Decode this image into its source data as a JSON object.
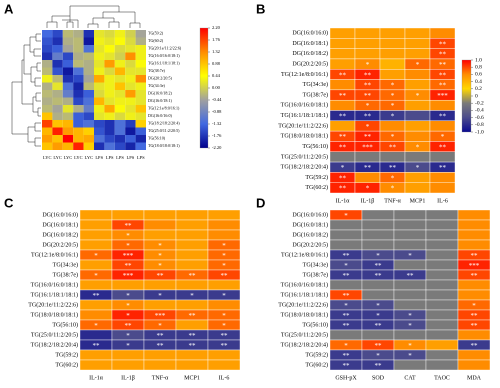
{
  "chart_data": [
    {
      "type": "heatmap",
      "label": "A",
      "rows": [
        "TG(59:2)",
        "TG(60:2)",
        "TG(20:1e/11:2/22:6)",
        "TG(16:0/16:0/18:1)",
        "TG(16:1/18:1/18:1)",
        "TG(38:7e)",
        "DG(20:2/20:5)",
        "TG(34:3e)",
        "DG(16:0/18:2)",
        "DG(16:0/18:1)",
        "TG(12:1e/8:0/16:1)",
        "DG(16:0/16:0)",
        "TG(18:2/18:2/20:4)",
        "TG(25:0/11:2/20:5)",
        "TG(56:10)",
        "TG(18:0/18:0/18:1)"
      ],
      "columns": [
        "LYC",
        "LYC",
        "LYC",
        "LYC",
        "LYC",
        "LPS",
        "LPS",
        "LPS",
        "LPS",
        "LPS"
      ],
      "values": [
        [
          -1.3,
          -1.6,
          -0.2,
          -0.3,
          -1.8,
          0.2,
          0.1,
          0.3,
          0.0,
          -0.4
        ],
        [
          -1.5,
          -1.8,
          -0.3,
          -0.2,
          -2.0,
          0.3,
          0.2,
          0.4,
          0.1,
          -0.3
        ],
        [
          -1.6,
          -1.4,
          -0.4,
          -0.2,
          -1.2,
          0.2,
          0.4,
          0.1,
          0.2,
          0.3
        ],
        [
          -1.8,
          -1.0,
          -1.6,
          -0.3,
          -0.2,
          0.3,
          0.2,
          0.0,
          1.3,
          0.3
        ],
        [
          -0.3,
          -1.8,
          -1.4,
          -0.2,
          -0.3,
          0.2,
          1.2,
          0.3,
          0.1,
          0.4
        ],
        [
          -0.2,
          -1.5,
          -2.0,
          -1.2,
          -0.3,
          0.3,
          0.1,
          1.0,
          0.2,
          0.2
        ],
        [
          0.3,
          -0.2,
          -1.8,
          -1.6,
          -0.4,
          1.1,
          0.3,
          0.2,
          0.3,
          1.3
        ],
        [
          -0.3,
          0.2,
          -1.2,
          -1.9,
          -0.2,
          0.2,
          0.3,
          0.9,
          0.2,
          0.3
        ],
        [
          -0.2,
          -0.3,
          -1.0,
          -1.8,
          -1.4,
          0.1,
          0.3,
          0.2,
          1.2,
          0.2
        ],
        [
          -0.3,
          -0.2,
          -0.3,
          -1.6,
          -1.2,
          1.0,
          0.2,
          0.3,
          0.3,
          0.2
        ],
        [
          -0.2,
          -0.4,
          0.2,
          -0.3,
          -1.0,
          0.3,
          1.1,
          0.4,
          0.2,
          0.9
        ],
        [
          0.9,
          -0.3,
          -0.2,
          -1.4,
          -1.6,
          0.2,
          0.3,
          0.1,
          0.3,
          0.2
        ],
        [
          1.8,
          0.9,
          1.0,
          -1.4,
          -1.2,
          -1.6,
          -1.8,
          -1.2,
          -1.7,
          0.8
        ],
        [
          1.0,
          2.0,
          1.2,
          1.0,
          0.8,
          -1.5,
          -1.8,
          -1.2,
          -2.0,
          -1.4
        ],
        [
          1.2,
          0.9,
          2.2,
          1.0,
          1.1,
          -1.2,
          -1.6,
          -1.8,
          -1.4,
          -1.9
        ],
        [
          0.9,
          1.2,
          1.0,
          2.0,
          0.8,
          -1.8,
          -1.2,
          -1.6,
          -1.9,
          -1.3
        ]
      ],
      "zlim": [
        -2.2,
        2.2
      ],
      "colors": [
        "#00008b",
        "#4169e1",
        "#a0a0a0",
        "#ffff00",
        "#ff8c00",
        "#ff0000"
      ],
      "colorbar": true,
      "zticks": [
        {
          "value": 2.2,
          "label": "2.20"
        },
        1.76,
        1.32,
        0.88,
        0.44,
        {
          "value": 0,
          "label": "0.00"
        },
        -0.44,
        -0.88,
        -1.32,
        -1.76,
        {
          "value": -2.2,
          "label": "-2.20"
        }
      ]
    },
    {
      "type": "heatmap",
      "label": "B",
      "rows": [
        "DG(16:0/16:0)",
        "DG(16:0/18:1)",
        "DG(16:0/18:2)",
        "DG(20:2/20:5)",
        "TG(12:1e/8:0/16:1)",
        "TG(34:3e)",
        "TG(38:7e)",
        "TG(16:0/16:0/18:1)",
        "TG(16:1/18:1/18:1)",
        "TG(20:1e/11:2/22:6)",
        "TG(18:0/18:0/18:1)",
        "TG(56:10)",
        "TG(25:0/11:2/20:5)",
        "TG(18:2/18:2/20:4)",
        "TG(59:2)",
        "TG(60:2)"
      ],
      "columns": [
        "IL-1α",
        "IL-1β",
        "TNF-α",
        "MCP1",
        "IL-6"
      ],
      "values": [
        [
          0.5,
          0.5,
          0.5,
          0.5,
          0.6
        ],
        [
          0.5,
          0.5,
          0.5,
          0.5,
          0.8
        ],
        [
          0.5,
          0.5,
          0.5,
          0.5,
          0.8
        ],
        [
          0.5,
          0.6,
          0.4,
          0.7,
          0.7
        ],
        [
          0.8,
          0.9,
          0.5,
          0.6,
          0.8
        ],
        [
          0.6,
          0.8,
          0.7,
          0.5,
          0.7
        ],
        [
          0.8,
          0.8,
          0.7,
          0.6,
          0.9
        ],
        [
          0.6,
          0.7,
          0.7,
          0.5,
          0.6
        ],
        [
          -0.8,
          -0.8,
          -0.7,
          -0.6,
          -0.8
        ],
        [
          0.5,
          0.8,
          0.6,
          0.5,
          0.6
        ],
        [
          0.8,
          0.9,
          0.7,
          0.6,
          0.7
        ],
        [
          0.9,
          0.9,
          0.8,
          0.6,
          0.9
        ],
        [
          -0.2,
          -0.2,
          -0.2,
          -0.2,
          -0.2
        ],
        [
          -0.7,
          -0.8,
          -0.8,
          -0.6,
          -0.8
        ],
        [
          0.9,
          0.6,
          0.7,
          0.5,
          0.6
        ],
        [
          0.9,
          0.9,
          0.6,
          0.5,
          0.6
        ]
      ],
      "stars": [
        [
          null,
          null,
          null,
          null,
          null
        ],
        [
          null,
          null,
          null,
          null,
          "**"
        ],
        [
          null,
          null,
          null,
          null,
          "**"
        ],
        [
          null,
          "*",
          null,
          "*",
          "**"
        ],
        [
          "**",
          "**",
          null,
          null,
          "**"
        ],
        [
          null,
          "**",
          "*",
          null,
          "**"
        ],
        [
          "**",
          "**",
          "*",
          "*",
          "***"
        ],
        [
          null,
          "*",
          "*",
          null,
          null
        ],
        [
          "**",
          "**",
          "*",
          null,
          "**"
        ],
        [
          null,
          "*",
          null,
          null,
          null
        ],
        [
          "**",
          "**",
          "*",
          null,
          "*"
        ],
        [
          "**",
          "***",
          "**",
          "*",
          "**"
        ],
        [
          null,
          null,
          null,
          null,
          null
        ],
        [
          "*",
          "**",
          "**",
          "*",
          "**"
        ],
        [
          "**",
          null,
          "*",
          null,
          null
        ],
        [
          "**",
          "*",
          "*",
          null,
          null
        ]
      ],
      "zlim": [
        -1,
        1
      ],
      "colors": [
        "#0a0a90",
        "#4b4b8c",
        "#7a7a7a",
        "#ffd700",
        "#ff8c00",
        "#ff0000"
      ],
      "colorbar": true,
      "zticks": [
        {
          "value": 1,
          "label": "1.0"
        },
        0.8,
        0.6,
        0.4,
        0.2,
        0,
        -0.2,
        -0.4,
        -0.6,
        -0.8,
        {
          "value": -1,
          "label": "-1.0"
        }
      ]
    },
    {
      "type": "heatmap",
      "label": "C",
      "rows": [
        "DG(16:0/16:0)",
        "DG(16:0/18:1)",
        "DG(16:0/18:2)",
        "DG(20:2/20:5)",
        "TG(12:1e/8:0/16:1)",
        "TG(34:3e)",
        "TG(38:7e)",
        "TG(16:0/16:0/18:1)",
        "TG(16:1/18:1/18:1)",
        "TG(20:1e/11:2/22:6)",
        "TG(18:0/18:0/18:1)",
        "TG(56:10)",
        "TG(25:0/11:2/20:5)",
        "TG(18:2/18:2/20:4)",
        "TG(59:2)",
        "TG(60:2)"
      ],
      "columns": [
        "IL-1α",
        "IL-1β",
        "TNF-α",
        "MCP1",
        "IL-6"
      ],
      "values": [
        [
          0.5,
          0.5,
          0.5,
          0.5,
          0.5
        ],
        [
          0.5,
          0.8,
          0.6,
          0.5,
          0.6
        ],
        [
          0.5,
          0.6,
          0.5,
          0.5,
          0.6
        ],
        [
          0.5,
          0.7,
          0.6,
          0.5,
          0.7
        ],
        [
          0.7,
          0.9,
          0.6,
          0.5,
          0.7
        ],
        [
          0.5,
          0.8,
          0.6,
          0.5,
          0.7
        ],
        [
          0.7,
          0.9,
          0.8,
          0.7,
          0.8
        ],
        [
          0.5,
          0.5,
          0.5,
          0.5,
          0.5
        ],
        [
          -0.8,
          -0.6,
          -0.7,
          -0.7,
          -0.7
        ],
        [
          0.5,
          0.6,
          0.5,
          0.5,
          0.6
        ],
        [
          0.6,
          0.9,
          0.8,
          0.7,
          0.7
        ],
        [
          0.7,
          0.8,
          0.7,
          0.5,
          0.7
        ],
        [
          -0.8,
          -0.6,
          -0.7,
          -0.7,
          -0.7
        ],
        [
          -0.8,
          -0.7,
          -0.7,
          -0.7,
          -0.7
        ],
        [
          0.5,
          0.5,
          0.5,
          0.5,
          0.5
        ],
        [
          0.5,
          0.5,
          0.5,
          0.5,
          0.5
        ]
      ],
      "stars": [
        [
          null,
          null,
          null,
          null,
          null
        ],
        [
          null,
          "**",
          null,
          null,
          null
        ],
        [
          null,
          "*",
          null,
          null,
          null
        ],
        [
          null,
          "*",
          "*",
          null,
          "*"
        ],
        [
          "*",
          "***",
          "*",
          null,
          "*"
        ],
        [
          null,
          "**",
          "*",
          null,
          "*"
        ],
        [
          "*",
          "***",
          "**",
          "**",
          "**"
        ],
        [
          null,
          null,
          null,
          null,
          null
        ],
        [
          "**",
          "*",
          "*",
          "*",
          "*"
        ],
        [
          null,
          "*",
          null,
          null,
          null
        ],
        [
          null,
          "*",
          "***",
          "**",
          "*"
        ],
        [
          "*",
          "**",
          "*",
          null,
          "*"
        ],
        [
          null,
          "*",
          "**",
          "**",
          "**"
        ],
        [
          "**",
          "*",
          "**",
          "**",
          "**"
        ],
        [
          null,
          null,
          null,
          null,
          null
        ],
        [
          null,
          null,
          null,
          null,
          null
        ]
      ],
      "zlim": [
        -1,
        1
      ],
      "colors": [
        "#0a0a90",
        "#4b4b8c",
        "#7a7a7a",
        "#ffd700",
        "#ff8c00",
        "#ff0000"
      ],
      "colorbar": false
    },
    {
      "type": "heatmap",
      "label": "D",
      "rows": [
        "DG(16:0/16:0)",
        "DG(16:0/18:1)",
        "DG(16:0/18:2)",
        "DG(20:2/20:5)",
        "TG(12:1e/8:0/16:1)",
        "TG(34:3e)",
        "TG(38:7e)",
        "TG(16:0/16:0/18:1)",
        "TG(16:1/18:1/18:1)",
        "TG(20:1e/11:2/22:6)",
        "TG(18:0/18:0/18:1)",
        "TG(56:10)",
        "TG(25:0/11:2/20:5)",
        "TG(18:2/18:2/20:4)",
        "TG(59:2)",
        "TG(60:2)"
      ],
      "columns": [
        "GSH-pX",
        "SOD",
        "CAT",
        "TAOC",
        "MDA"
      ],
      "values": [
        [
          0.8,
          -0.2,
          -0.2,
          -0.2,
          0.6
        ],
        [
          -0.2,
          -0.2,
          -0.2,
          -0.2,
          0.6
        ],
        [
          -0.2,
          -0.2,
          -0.2,
          -0.2,
          0.6
        ],
        [
          -0.2,
          -0.2,
          -0.2,
          -0.2,
          0.6
        ],
        [
          -0.7,
          -0.6,
          -0.6,
          -0.2,
          0.8
        ],
        [
          -0.6,
          -0.7,
          -0.2,
          -0.2,
          0.9
        ],
        [
          -0.7,
          -0.7,
          -0.7,
          -0.2,
          0.8
        ],
        [
          -0.2,
          -0.2,
          -0.2,
          -0.2,
          0.6
        ],
        [
          0.8,
          -0.2,
          -0.2,
          -0.2,
          0.6
        ],
        [
          -0.6,
          -0.6,
          -0.2,
          -0.2,
          0.7
        ],
        [
          -0.7,
          -0.7,
          -0.6,
          -0.2,
          0.8
        ],
        [
          -0.7,
          -0.7,
          -0.6,
          -0.2,
          0.8
        ],
        [
          -0.2,
          -0.2,
          -0.2,
          -0.2,
          0.6
        ],
        [
          0.7,
          0.8,
          0.6,
          0.5,
          -0.7
        ],
        [
          -0.7,
          -0.6,
          -0.6,
          -0.2,
          0.6
        ],
        [
          -0.7,
          -0.7,
          -0.2,
          -0.2,
          0.6
        ]
      ],
      "stars": [
        [
          "*",
          null,
          null,
          null,
          null
        ],
        [
          null,
          null,
          null,
          null,
          null
        ],
        [
          null,
          null,
          null,
          null,
          null
        ],
        [
          null,
          null,
          null,
          null,
          null
        ],
        [
          "**",
          "*",
          "*",
          null,
          "**"
        ],
        [
          "*",
          "**",
          null,
          null,
          "***"
        ],
        [
          "**",
          "**",
          "**",
          null,
          "**"
        ],
        [
          null,
          null,
          null,
          null,
          null
        ],
        [
          "**",
          null,
          null,
          null,
          null
        ],
        [
          "*",
          "*",
          null,
          null,
          "*"
        ],
        [
          "**",
          "*",
          "*",
          null,
          "**"
        ],
        [
          "**",
          "**",
          "*",
          null,
          "**"
        ],
        [
          null,
          null,
          null,
          null,
          null
        ],
        [
          "*",
          "**",
          "*",
          null,
          "**"
        ],
        [
          "**",
          "*",
          "*",
          null,
          null
        ],
        [
          "**",
          "**",
          null,
          null,
          null
        ]
      ],
      "zlim": [
        -1,
        1
      ],
      "colors": [
        "#0a0a90",
        "#4b4b8c",
        "#7a7a7a",
        "#ffd700",
        "#ff8c00",
        "#ff0000"
      ],
      "colorbar": false
    }
  ]
}
